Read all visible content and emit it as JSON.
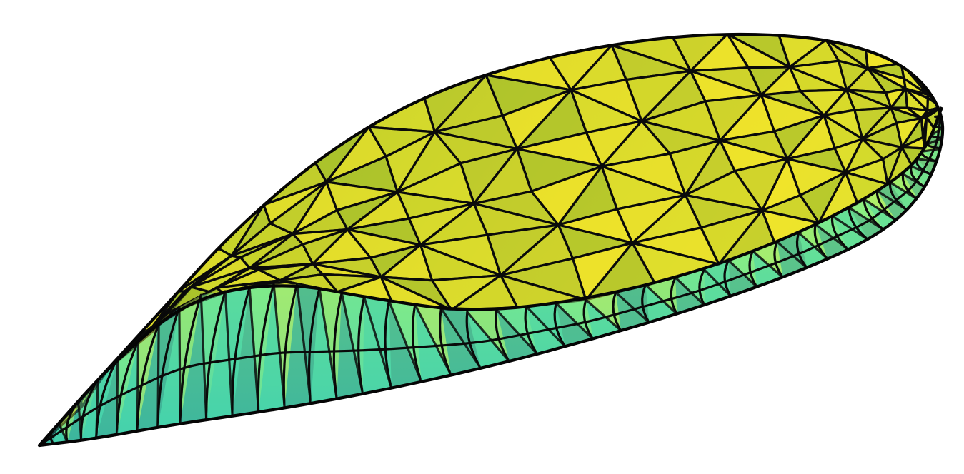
{
  "figure": {
    "kind": "triangulated-3d-surface",
    "shape": "elongated-teardrop",
    "colors": {
      "background": "#ffffff",
      "edge": "#0a0a0a",
      "top_dark": "#8fb52c",
      "top_mid": "#c4d22a",
      "top_light": "#f1e42a",
      "side_light": "#d8f050",
      "side_mid": "#8ff082",
      "side_dark": "#3fcfb0",
      "side_deep": "#2c8c8a"
    }
  }
}
